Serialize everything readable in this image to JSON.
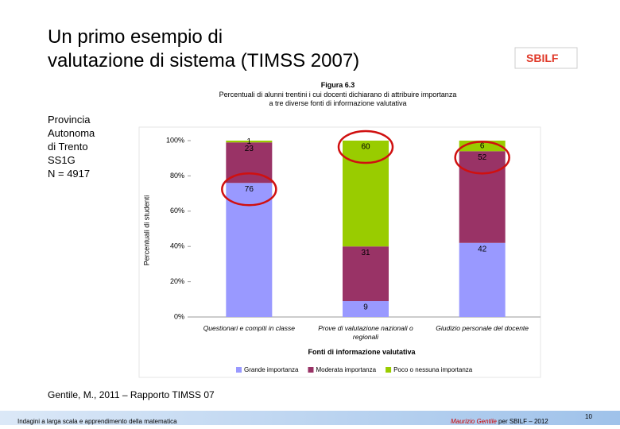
{
  "slide": {
    "title_lines": [
      "Un primo esempio di",
      "valutazione di sistema (TIMSS 2007)"
    ],
    "logo": "SBILF",
    "info_lines": [
      "Provincia",
      "Autonoma",
      "di Trento",
      "SS1G",
      "N = 4917"
    ],
    "citation": "Gentile, M., 2011 – Rapporto TIMSS 07",
    "footer_left": "Indagini a larga scala e apprendimento della matematica",
    "footer_author": "Maurizio Gentile",
    "footer_right": "per SBILF – 2012",
    "page_number": "10"
  },
  "chart_data": {
    "type": "stacked_bar",
    "title": "Figura 6.3",
    "subtitle": "Percentuali di alunni trentini i cui docenti dichiarano di attribuire importanza a tre diverse fonti di informazione valutativa",
    "x_label": "Fonti di informazione valutativa",
    "y_label": "Percentuali di studenti",
    "categories": [
      "Questionari e compiti in classe",
      "Prove di valutazione nazionali o regionali",
      "Giudizio personale del docente"
    ],
    "series": [
      {
        "name": "Grande importanza",
        "color": "#9999ff",
        "values": [
          76,
          9,
          42
        ]
      },
      {
        "name": "Moderata importanza",
        "color": "#993366",
        "values": [
          23,
          31,
          52
        ]
      },
      {
        "name": "Poco o nessuna importanza",
        "color": "#99cc00",
        "values": [
          1,
          60,
          6
        ]
      }
    ],
    "ylim": [
      0,
      100
    ],
    "yticks": [
      {
        "value": 0,
        "label": "0%"
      },
      {
        "value": 20,
        "label": "20%"
      },
      {
        "value": 40,
        "label": "40%"
      },
      {
        "value": 60,
        "label": "60%"
      },
      {
        "value": 80,
        "label": "80%"
      },
      {
        "value": 100,
        "label": "100%"
      }
    ],
    "legend": "bottom"
  }
}
